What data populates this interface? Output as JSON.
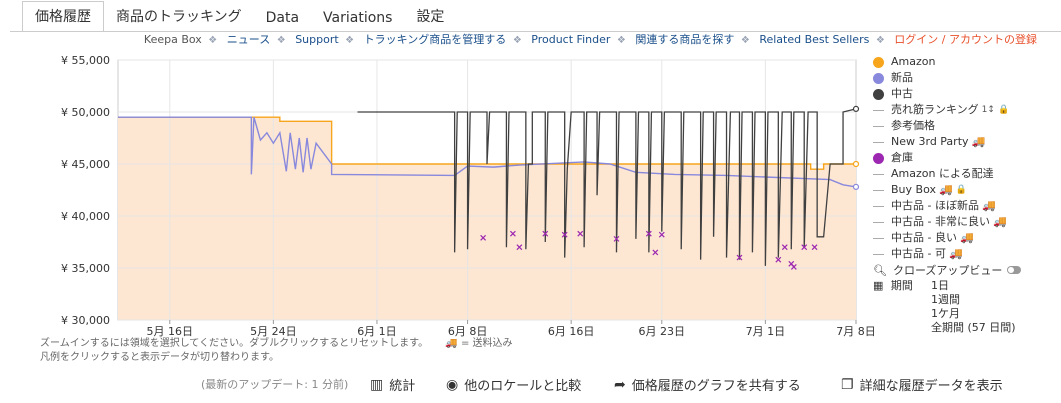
{
  "tabs": [
    "価格履歴",
    "商品のトラッキング",
    "Data",
    "Variations",
    "設定"
  ],
  "links": {
    "keepa_box": "Keepa Box",
    "items": [
      "ニュース",
      "Support",
      "トラッキング商品を管理する",
      "Product Finder",
      "関連する商品を探す",
      "Related Best Sellers"
    ],
    "login": "ログイン / アカウントの登録"
  },
  "colors": {
    "amazon": "#f7a51c",
    "new": "#8888dd",
    "used": "#404040",
    "buy_box": "#ff00b4",
    "warehouse": "#9c27b0",
    "fill": "#fde7d3",
    "grid": "#e6e6e6"
  },
  "chart_data": {
    "type": "line",
    "y_ticks": [
      "¥ 55,000",
      "¥ 50,000",
      "¥ 45,000",
      "¥ 40,000",
      "¥ 35,000",
      "¥ 30,000"
    ],
    "x_ticks": [
      "5月 16日",
      "5月 24日",
      "6月 1日",
      "6月 8日",
      "6月 16日",
      "6月 23日",
      "7月 1日",
      "7月 8日"
    ],
    "ylim": [
      30000,
      55000
    ],
    "xlim": [
      0,
      57
    ],
    "x_ticks_day": [
      4,
      12,
      20,
      27,
      35,
      42,
      50,
      57
    ],
    "grid": true,
    "series": [
      {
        "name": "Amazon",
        "points": [
          [
            -4,
            49500
          ],
          [
            12.5,
            49500
          ],
          [
            12.5,
            49100
          ],
          [
            16.5,
            49100
          ],
          [
            16.5,
            45000
          ],
          [
            53.5,
            45000
          ],
          [
            53.5,
            44500
          ],
          [
            54.5,
            44500
          ],
          [
            54.5,
            45000
          ],
          [
            57,
            45000
          ]
        ]
      },
      {
        "name": "新品",
        "points": [
          [
            -4,
            49500
          ],
          [
            10.3,
            49500
          ],
          [
            10.3,
            44000
          ],
          [
            10.5,
            49500
          ],
          [
            11,
            47300
          ],
          [
            11.5,
            48000
          ],
          [
            12,
            47000
          ],
          [
            12.5,
            48000
          ],
          [
            13,
            44300
          ],
          [
            13.3,
            48000
          ],
          [
            13.7,
            44500
          ],
          [
            14,
            47500
          ],
          [
            14.3,
            44200
          ],
          [
            14.6,
            47500
          ],
          [
            14.9,
            44500
          ],
          [
            15.3,
            47000
          ],
          [
            16.5,
            45000
          ],
          [
            16.5,
            44000
          ],
          [
            26,
            43900
          ],
          [
            27,
            44800
          ],
          [
            29,
            44700
          ],
          [
            31,
            44900
          ],
          [
            36,
            45200
          ],
          [
            38,
            45000
          ],
          [
            40,
            44200
          ],
          [
            43,
            44000
          ],
          [
            47,
            43900
          ],
          [
            55,
            43500
          ],
          [
            56,
            43000
          ],
          [
            57,
            42800
          ]
        ]
      },
      {
        "name": "中古",
        "points": [
          [
            18.5,
            50000
          ],
          [
            26,
            50000
          ],
          [
            26,
            36500
          ],
          [
            26.2,
            50000
          ],
          [
            27,
            50000
          ],
          [
            27,
            36800
          ],
          [
            27.2,
            50000
          ],
          [
            28.5,
            50000
          ],
          [
            28.5,
            45000
          ],
          [
            28.7,
            50000
          ],
          [
            30,
            50000
          ],
          [
            30,
            37000
          ],
          [
            30.2,
            50000
          ],
          [
            31.5,
            50000
          ],
          [
            31.5,
            36800
          ],
          [
            31.7,
            45000
          ],
          [
            32,
            45000
          ],
          [
            32,
            50000
          ],
          [
            33,
            50000
          ],
          [
            33,
            37500
          ],
          [
            33.2,
            50000
          ],
          [
            34.5,
            50000
          ],
          [
            34.5,
            36000
          ],
          [
            34.7,
            44500
          ],
          [
            35,
            50000
          ],
          [
            36,
            50000
          ],
          [
            36,
            37000
          ],
          [
            36.2,
            50000
          ],
          [
            37,
            50000
          ],
          [
            37,
            42000
          ],
          [
            37.2,
            50000
          ],
          [
            38.5,
            50000
          ],
          [
            38.5,
            36500
          ],
          [
            38.7,
            50000
          ],
          [
            40,
            50000
          ],
          [
            40,
            37800
          ],
          [
            40.2,
            50000
          ],
          [
            41,
            50000
          ],
          [
            41,
            36500
          ],
          [
            41.2,
            50000
          ],
          [
            42,
            50000
          ],
          [
            42,
            38500
          ],
          [
            42.2,
            50000
          ],
          [
            43.5,
            50000
          ],
          [
            43.5,
            36800
          ],
          [
            43.7,
            50000
          ],
          [
            45,
            50000
          ],
          [
            45,
            35800
          ],
          [
            45.2,
            50000
          ],
          [
            46,
            50000
          ],
          [
            46,
            38000
          ],
          [
            46.2,
            50000
          ],
          [
            47,
            50000
          ],
          [
            47,
            36000
          ],
          [
            47.3,
            50000
          ],
          [
            48,
            50000
          ],
          [
            48,
            35800
          ],
          [
            48.2,
            50000
          ],
          [
            49,
            50000
          ],
          [
            49,
            36500
          ],
          [
            49.2,
            50000
          ],
          [
            50,
            50000
          ],
          [
            50,
            35200
          ],
          [
            50.2,
            50000
          ],
          [
            51,
            50000
          ],
          [
            51,
            36000
          ],
          [
            51.3,
            50000
          ],
          [
            52,
            50000
          ],
          [
            52,
            36800
          ],
          [
            52.2,
            50000
          ],
          [
            53,
            50000
          ],
          [
            53,
            37000
          ],
          [
            53.3,
            50000
          ],
          [
            54,
            50000
          ],
          [
            54,
            38000
          ],
          [
            54.5,
            38000
          ],
          [
            55,
            45000
          ],
          [
            56,
            45000
          ],
          [
            56,
            50000
          ],
          [
            57,
            50300
          ]
        ]
      },
      {
        "name": "倉庫",
        "points": [
          [
            28.2,
            37900
          ],
          [
            30.5,
            38300
          ],
          [
            31,
            37000
          ],
          [
            33,
            38300
          ],
          [
            34.5,
            38200
          ],
          [
            35.7,
            38300
          ],
          [
            38.5,
            37800
          ],
          [
            41,
            38300
          ],
          [
            41.5,
            36500
          ],
          [
            42,
            38200
          ],
          [
            48,
            36000
          ],
          [
            51,
            35800
          ],
          [
            51.5,
            37000
          ],
          [
            52,
            35400
          ],
          [
            52.2,
            35100
          ],
          [
            53,
            37000
          ],
          [
            53.8,
            37000
          ]
        ]
      }
    ]
  },
  "legend": [
    {
      "label": "Amazon",
      "kind": "dot",
      "color": "#f7a51c"
    },
    {
      "label": "新品",
      "kind": "dot",
      "color": "#8888dd"
    },
    {
      "label": "中古",
      "kind": "dot",
      "color": "#404040"
    },
    {
      "label": "売れ筋ランキング",
      "kind": "dash",
      "badge": "1↕",
      "lock": true
    },
    {
      "label": "参考価格",
      "kind": "dash"
    },
    {
      "label": "New 3rd Party",
      "kind": "dash",
      "truck": true
    },
    {
      "label": "倉庫",
      "kind": "dot",
      "color": "#9c27b0"
    },
    {
      "label": "Amazon による配達",
      "kind": "dash"
    },
    {
      "label": "Buy Box",
      "kind": "dash",
      "truck": true,
      "lock": true
    },
    {
      "label": "中古品 - ほぼ新品",
      "kind": "dash",
      "truck": true
    },
    {
      "label": "中古品 - 非常に良い",
      "kind": "dash",
      "truck": true
    },
    {
      "label": "中古品 - 良い",
      "kind": "dash",
      "truck": true
    },
    {
      "label": "中古品 - 可",
      "kind": "dash",
      "truck": true
    }
  ],
  "closeup": "クローズアップビュー",
  "period": {
    "label": "期間",
    "options": [
      "1日",
      "1週間",
      "1ケ月",
      "全期間 (57 日間)"
    ]
  },
  "hints": [
    "ズームインするには領域を選択してください。ダブルクリックするとリセットします。",
    "= 送料込み",
    "凡例をクリックすると表示データが切り替わります。"
  ],
  "footer": {
    "update": "(最新のアップデート: 1 分前)",
    "stats": "統計",
    "compare": "他のロケールと比較",
    "share": "価格履歴のグラフを共有する",
    "details": "詳細な履歴データを表示"
  }
}
